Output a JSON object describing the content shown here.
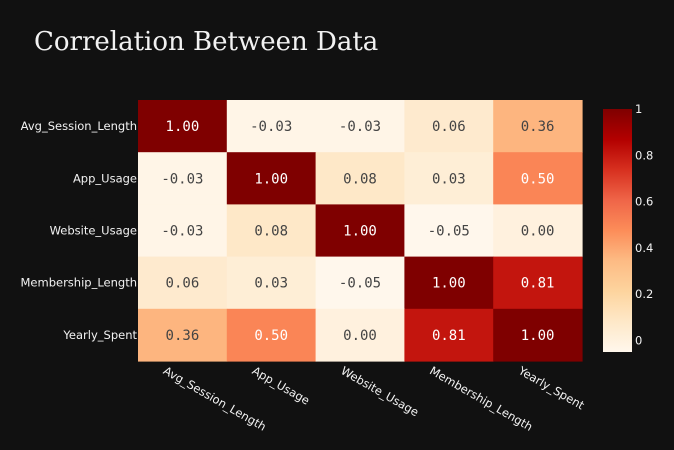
{
  "chart_data": {
    "type": "heatmap",
    "title": "Correlation Between Data",
    "x_categories": [
      "Avg_Session_Length",
      "App_Usage",
      "Website_Usage",
      "Membership_Length",
      "Yearly_Spent"
    ],
    "y_categories": [
      "Avg_Session_Length",
      "App_Usage",
      "Website_Usage",
      "Membership_Length",
      "Yearly_Spent"
    ],
    "z": [
      [
        1.0,
        -0.03,
        -0.03,
        0.06,
        0.36
      ],
      [
        -0.03,
        1.0,
        0.08,
        0.03,
        0.5
      ],
      [
        -0.03,
        0.08,
        1.0,
        -0.05,
        0.0
      ],
      [
        0.06,
        0.03,
        -0.05,
        1.0,
        0.81
      ],
      [
        0.36,
        0.5,
        0.0,
        0.81,
        1.0
      ]
    ],
    "text": [
      [
        "1.00",
        "-0.03",
        "-0.03",
        "0.06",
        "0.36"
      ],
      [
        "-0.03",
        "1.00",
        "0.08",
        "0.03",
        "0.50"
      ],
      [
        "-0.03",
        "0.08",
        "1.00",
        "-0.05",
        "0.00"
      ],
      [
        "0.06",
        "0.03",
        "-0.05",
        "1.00",
        "0.81"
      ],
      [
        "0.36",
        "0.50",
        "0.00",
        "0.81",
        "1.00"
      ]
    ],
    "zmin": -0.05,
    "zmax": 1.0,
    "colorscale": "OrRd",
    "colorbar_ticks": [
      {
        "value": 0,
        "label": "0"
      },
      {
        "value": 0.2,
        "label": "0.2"
      },
      {
        "value": 0.4,
        "label": "0.4"
      },
      {
        "value": 0.6,
        "label": "0.6"
      },
      {
        "value": 0.8,
        "label": "0.8"
      },
      {
        "value": 1,
        "label": "1"
      }
    ],
    "x_tick_angle": 30,
    "background": "#111111",
    "text_color": "#f2f2f2"
  }
}
